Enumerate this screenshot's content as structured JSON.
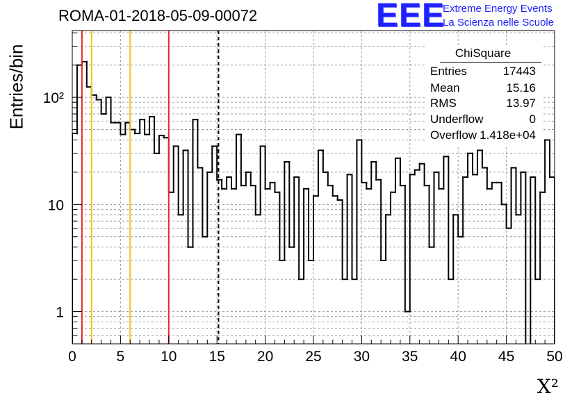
{
  "title": "ROMA-01-2018-05-09-00072",
  "logo": {
    "mark": "EEE",
    "line1": "Extreme Energy Events",
    "line2": "La Scienza nelle Scuole",
    "color": "#1f22ff"
  },
  "stats": {
    "title": "ChiSquare",
    "rows": [
      {
        "key": "Entries",
        "value": "17443"
      },
      {
        "key": "Mean",
        "value": "15.16"
      },
      {
        "key": "RMS",
        "value": "13.97"
      },
      {
        "key": "Underflow",
        "value": "0"
      },
      {
        "key": "Overflow",
        "value": "1.418e+04"
      }
    ]
  },
  "chart_data": {
    "type": "histogram",
    "xlabel": "X²",
    "ylabel": "Entries/bin",
    "xlim": [
      0,
      50
    ],
    "ylim": [
      0.5,
      420
    ],
    "yscale": "log",
    "grid": true,
    "bin_width": 0.5,
    "x_ticks": [
      "0",
      "5",
      "10",
      "15",
      "20",
      "25",
      "30",
      "35",
      "40",
      "45",
      "50"
    ],
    "y_ticks": [
      {
        "value": 1,
        "label": "1"
      },
      {
        "value": 10,
        "label": "10"
      },
      {
        "value": 100,
        "label": "10²"
      }
    ],
    "values": [
      46,
      200,
      215,
      125,
      105,
      95,
      70,
      100,
      58,
      58,
      45,
      58,
      50,
      46,
      62,
      45,
      66,
      30,
      44,
      42,
      13,
      35,
      8,
      32,
      4,
      62,
      22,
      5,
      20,
      35,
      17,
      14,
      18,
      14,
      45,
      15,
      20,
      15,
      8,
      35,
      14,
      16,
      13,
      3,
      25,
      4,
      18,
      2,
      14,
      3,
      12,
      32,
      20,
      15,
      12,
      11,
      2,
      19,
      2,
      40,
      16,
      14,
      25,
      17,
      3,
      8,
      13,
      27,
      15,
      1,
      19,
      21,
      24,
      15,
      4,
      20,
      14,
      28,
      2,
      8,
      5,
      18,
      30,
      19,
      32,
      22,
      14,
      16,
      16,
      10,
      6,
      22,
      8,
      20,
      0,
      18,
      2,
      13,
      40,
      18
    ],
    "reference_lines": [
      {
        "x": 1,
        "color": "#e8262a",
        "style": "solid"
      },
      {
        "x": 2,
        "color": "#f5c21b",
        "style": "solid"
      },
      {
        "x": 6,
        "color": "#f5c21b",
        "style": "solid"
      },
      {
        "x": 10,
        "color": "#e8262a",
        "style": "solid"
      },
      {
        "x": 15.16,
        "color": "#000000",
        "style": "dashed"
      }
    ]
  }
}
